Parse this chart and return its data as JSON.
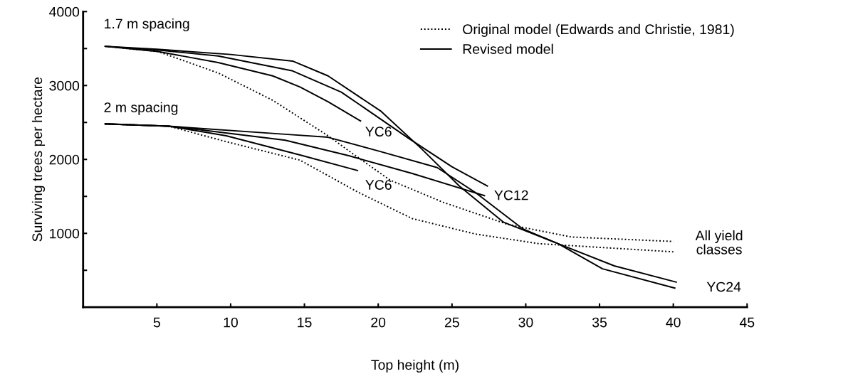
{
  "chart_data": {
    "type": "line",
    "xlabel": "Top height (m)",
    "ylabel": "Surviving trees per hectare",
    "xlim": [
      0,
      45
    ],
    "ylim": [
      0,
      4000
    ],
    "xticks": [
      5,
      10,
      15,
      20,
      25,
      30,
      35,
      40,
      45
    ],
    "yticks": [
      {
        "value": 500,
        "label": null
      },
      1000,
      {
        "value": 1500,
        "label": null
      },
      2000,
      {
        "value": 2500,
        "label": null
      },
      3000,
      {
        "value": 3500,
        "label": null
      },
      4000
    ],
    "grid": false,
    "legend": "top right",
    "marker": "none",
    "series": [
      {
        "name": "Original model (Edwards and Christie, 1981)",
        "color": "#000000",
        "line_style": "dotted",
        "x": [
          1.5,
          5.07,
          9.15,
          12.85,
          16.6,
          18.4,
          20.8,
          24.4,
          28.8,
          33.1,
          40
        ],
        "values": [
          3530,
          3460,
          3170,
          2800,
          2320,
          2060,
          1720,
          1420,
          1120,
          950,
          890
        ]
      },
      {
        "color": "#000000",
        "line_style": "dotted",
        "x": [
          1.5,
          5.8,
          9.7,
          14.7,
          18.6,
          22.3,
          26.6,
          30.9,
          40
        ],
        "values": [
          2480,
          2450,
          2240,
          1990,
          1560,
          1200,
          990,
          860,
          750
        ]
      },
      {
        "name": "Revised model",
        "color": "#000000",
        "line_style": "solid",
        "x": [
          1.5,
          5.07,
          9.15,
          12.85,
          14.7,
          16.6,
          18.8
        ],
        "values": [
          3530,
          3460,
          3310,
          3130,
          2980,
          2780,
          2520
        ]
      },
      {
        "color": "#000000",
        "line_style": "solid",
        "x": [
          1.5,
          5,
          9.15,
          14.15,
          17.5,
          22.1,
          25,
          27.4
        ],
        "values": [
          3530,
          3480,
          3400,
          3200,
          2910,
          2280,
          1900,
          1640
        ]
      },
      {
        "color": "#000000",
        "line_style": "solid",
        "x": [
          1.5,
          5,
          10,
          14.2,
          16.6,
          20.2,
          22.9,
          25.5,
          28.5,
          32.2,
          36,
          40.2
        ],
        "values": [
          3530,
          3490,
          3420,
          3330,
          3130,
          2650,
          2150,
          1640,
          1150,
          860,
          560,
          340
        ]
      },
      {
        "color": "#000000",
        "line_style": "solid",
        "x": [
          1.5,
          5.8,
          9.7,
          14.7,
          18.6
        ],
        "values": [
          2480,
          2450,
          2320,
          2060,
          1850
        ]
      },
      {
        "color": "#000000",
        "line_style": "solid",
        "x": [
          1.5,
          5.8,
          8,
          13.7,
          18,
          22.3,
          27.2
        ],
        "values": [
          2480,
          2450,
          2400,
          2260,
          2050,
          1810,
          1510
        ]
      },
      {
        "color": "#000000",
        "line_style": "solid",
        "x": [
          1.5,
          5.8,
          13.7,
          16.6,
          20.1,
          24,
          26.6,
          29.8,
          32.2,
          35.2,
          40.1
        ],
        "values": [
          2480,
          2450,
          2340,
          2300,
          2110,
          1890,
          1550,
          1060,
          860,
          520,
          260
        ]
      }
    ],
    "annotations": [
      "1.7 m spacing",
      "2 m spacing",
      "YC6",
      "YC6",
      "YC12",
      "YC24",
      "All yield\nclasses"
    ]
  }
}
